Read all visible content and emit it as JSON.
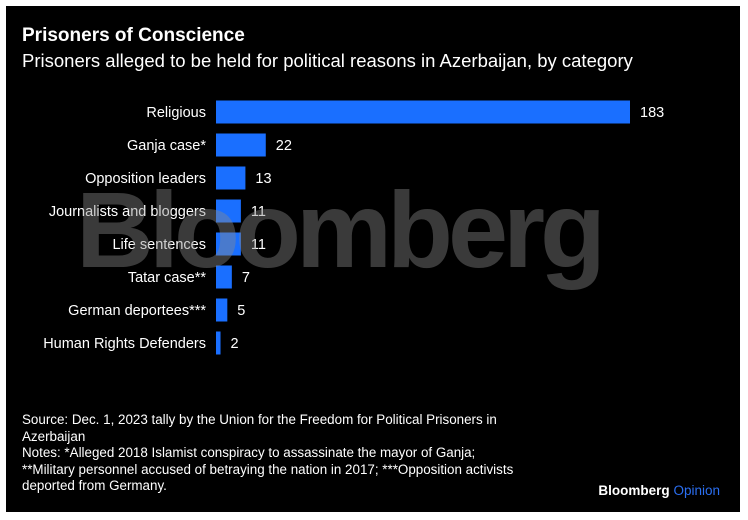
{
  "header": {
    "title": "Prisoners of Conscience",
    "subtitle": "Prisoners alleged to be held for political reasons in Azerbaijan, by category"
  },
  "chart_data": {
    "type": "bar",
    "orientation": "horizontal",
    "categories": [
      "Religious",
      "Ganja case*",
      "Opposition leaders",
      "Journalists and bloggers",
      "Life sentences",
      "Tatar case**",
      "German deportees***",
      "Human Rights Defenders"
    ],
    "values": [
      183,
      22,
      13,
      11,
      11,
      7,
      5,
      2
    ],
    "data_labels": [
      "183",
      "22",
      "13",
      "11",
      "11",
      "7",
      "5",
      "2"
    ],
    "xlim": [
      0,
      183
    ],
    "grid": false,
    "bar_color": "#1a6fff"
  },
  "watermark": "Bloomberg",
  "footer": {
    "source_line1": "Source: Dec. 1, 2023 tally by the Union for the Freedom for Political Prisoners in",
    "source_line2": "Azerbaijan",
    "notes_line1": "Notes: *Alleged 2018 Islamist conspiracy to assassinate the mayor of Ganja;",
    "notes_line2": "**Military personnel accused of betraying the nation in 2017; ***Opposition activists",
    "notes_line3": "deported from Germany.",
    "brand_part1": "Bloomberg",
    "brand_part2": "Opinion"
  },
  "colors": {
    "background": "#000000",
    "text": "#ffffff",
    "bar": "#1a6fff",
    "brand_accent": "#2b6ff2"
  }
}
